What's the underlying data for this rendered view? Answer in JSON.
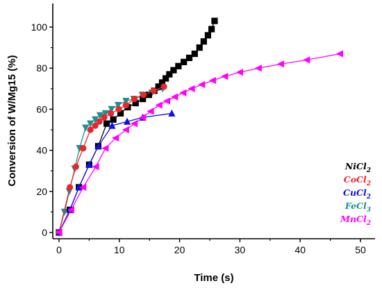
{
  "chart_data": {
    "type": "line",
    "xlabel": "Time (s)",
    "ylabel": "Conversion of W/Mg15 (%)",
    "xlim": [
      -1,
      53
    ],
    "ylim": [
      -3,
      110
    ],
    "x_ticks": [
      0,
      10,
      20,
      30,
      40,
      50
    ],
    "y_ticks": [
      0,
      20,
      40,
      60,
      80,
      100
    ],
    "grid": false,
    "legend_position": "right",
    "series": [
      {
        "name": "NiCl2",
        "label_main": "NiCl",
        "label_sub": "2",
        "color": "#000000",
        "marker": "square",
        "x": [
          0,
          1.8,
          3.3,
          5.0,
          6.5,
          7.9,
          9.0,
          10.2,
          11.4,
          12.7,
          13.9,
          14.9,
          15.8,
          16.5,
          17.1,
          17.7,
          18.3,
          19.0,
          19.8,
          20.7,
          21.6,
          22.5,
          23.3,
          24.0,
          24.7,
          25.3,
          25.8
        ],
        "y": [
          0,
          11,
          22,
          33,
          42,
          53,
          55,
          58,
          61,
          63,
          65,
          67,
          69,
          71,
          73,
          75,
          77,
          79,
          81,
          83,
          85,
          87,
          90,
          93,
          96,
          99,
          103
        ]
      },
      {
        "name": "CoCl2",
        "label_main": "CoCl",
        "label_sub": "2",
        "color": "#e8262b",
        "marker": "circle",
        "x": [
          0,
          1.8,
          2.8,
          4.0,
          5.2,
          6.0,
          6.7,
          7.5,
          8.6,
          9.9,
          11.1,
          12.5,
          14.0,
          15.7,
          17.4
        ],
        "y": [
          0,
          22,
          32,
          41,
          50,
          52,
          54,
          56,
          58,
          60,
          62,
          65,
          67,
          69,
          71
        ]
      },
      {
        "name": "CuCl2",
        "label_main": "CuCl",
        "label_sub": "2",
        "color": "#1010e0",
        "marker": "triangle-up",
        "x": [
          0,
          1.8,
          3.3,
          5.0,
          6.5,
          8.8,
          11.3,
          13.9,
          18.7
        ],
        "y": [
          0,
          11,
          22,
          33,
          42,
          52,
          54,
          56,
          58
        ]
      },
      {
        "name": "FeCl3",
        "label_main": "FeCl",
        "label_sub": "3",
        "color": "#1e8f8c",
        "marker": "triangle-down",
        "x": [
          0,
          0.9,
          1.7,
          2.6,
          3.4,
          4.4,
          5.2,
          6.0,
          6.8,
          7.7,
          8.7,
          9.8,
          11.1,
          12.4,
          13.8,
          15.4,
          17.2
        ],
        "y": [
          0,
          10,
          20,
          31,
          41,
          51,
          53,
          55,
          57,
          58,
          60,
          62,
          64,
          65,
          67,
          68,
          70
        ]
      },
      {
        "name": "MnCl2",
        "label_main": "MnCl",
        "label_sub": "2",
        "color": "#ff00ff",
        "marker": "triangle-left",
        "x": [
          0,
          2.0,
          4.0,
          6.1,
          7.7,
          9.4,
          11.1,
          12.5,
          13.9,
          15.2,
          16.6,
          17.9,
          19.2,
          20.6,
          22.0,
          23.7,
          25.5,
          27.5,
          30.0,
          33.1,
          36.8,
          41.1,
          46.6
        ],
        "y": [
          0,
          11,
          22,
          32,
          41,
          46,
          50,
          53,
          56,
          59,
          62,
          64,
          66,
          68,
          70,
          72,
          74,
          76,
          78,
          80,
          82,
          84,
          87
        ]
      }
    ]
  }
}
